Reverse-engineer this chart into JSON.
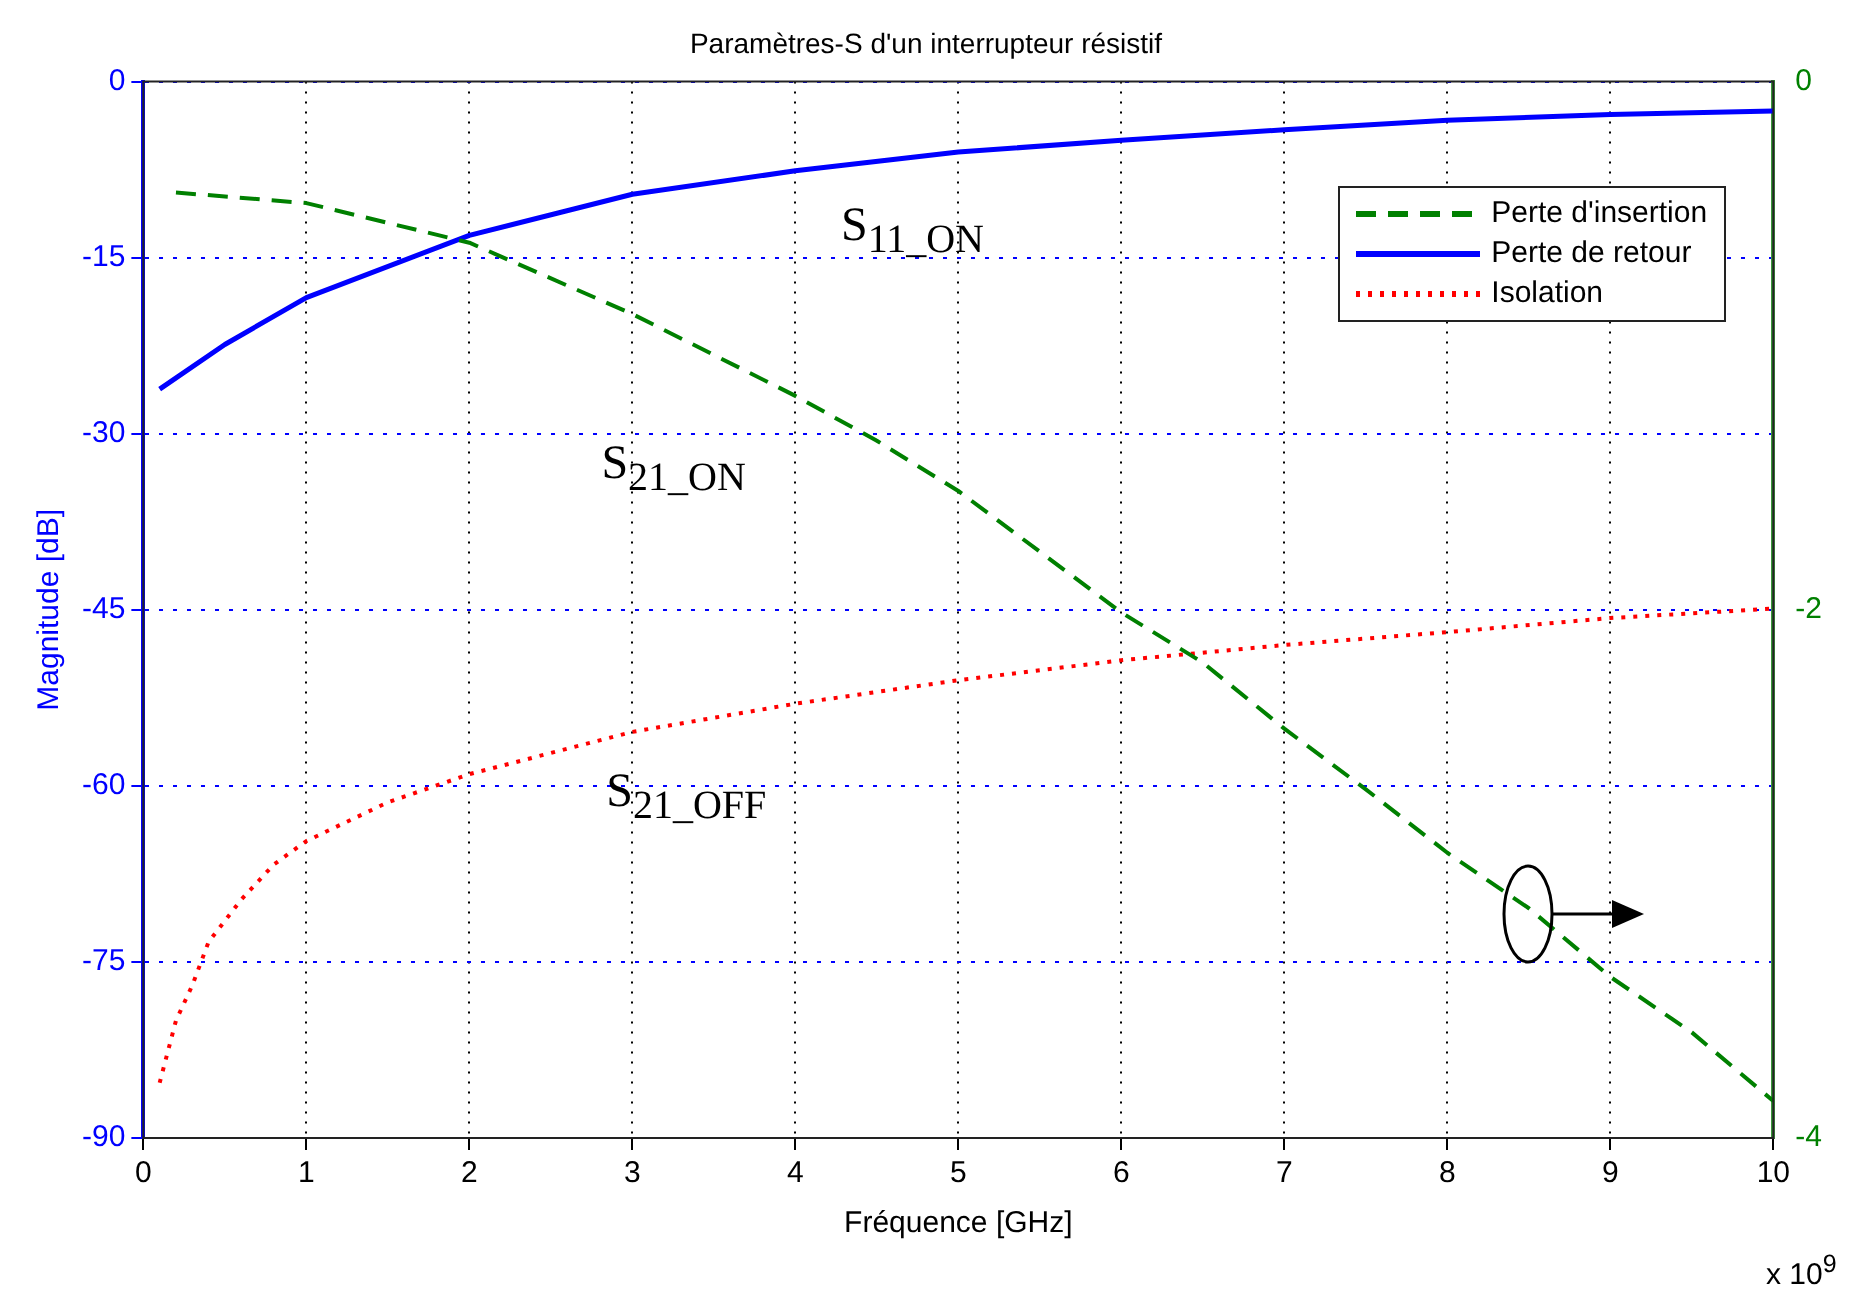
{
  "chart_data": {
    "type": "line",
    "title": "Paramètres-S d'un interrupteur résistif",
    "xlabel": "Fréquence [GHz]",
    "ylabel": "Magnitude [dB]",
    "xlim": [
      0,
      10
    ],
    "xticks": [
      0,
      1,
      2,
      3,
      4,
      5,
      6,
      7,
      8,
      9,
      10
    ],
    "ylim": [
      -90,
      0
    ],
    "yticks": [
      -90,
      -75,
      -60,
      -45,
      -30,
      -15,
      0
    ],
    "y2lim": [
      -4,
      0
    ],
    "y2ticks": [
      -4,
      -2,
      0
    ],
    "grid": true,
    "legend": "top right",
    "marker": "none",
    "series": [
      {
        "name": "Perte d'insertion",
        "color": "#008000",
        "axis": "y2",
        "line_style": "dashed",
        "x": [
          0.2,
          1,
          2,
          3,
          4,
          4.5,
          5,
          6,
          6.5,
          7,
          7.5,
          8,
          8.5,
          9,
          9.5,
          10
        ],
        "values": [
          -0.42,
          -0.46,
          -0.61,
          -0.88,
          -1.19,
          -1.36,
          -1.55,
          -2.01,
          -2.2,
          -2.45,
          -2.68,
          -2.92,
          -3.13,
          -3.39,
          -3.6,
          -3.86
        ]
      },
      {
        "name": "Perte de retour",
        "color": "#0000ff",
        "line_style": "solid",
        "x": [
          0.1,
          0.5,
          1,
          2,
          3,
          4,
          5,
          6,
          7,
          8,
          9,
          10
        ],
        "values": [
          -26.2,
          -22.4,
          -18.4,
          -13.1,
          -9.6,
          -7.6,
          -6.0,
          -5.0,
          -4.1,
          -3.3,
          -2.8,
          -2.5
        ]
      },
      {
        "name": "Isolation",
        "color": "#ff0000",
        "line_style": "dotted",
        "x": [
          0.1,
          0.2,
          0.3,
          0.4,
          0.6,
          0.8,
          1,
          1.5,
          2,
          3,
          4,
          5,
          6,
          7,
          8,
          9,
          10
        ],
        "values": [
          -85.3,
          -80,
          -77,
          -73.3,
          -69.7,
          -66.7,
          -64.7,
          -61.4,
          -59,
          -55.4,
          -53,
          -51,
          -49.3,
          -48,
          -46.9,
          -45.7,
          -44.9
        ]
      }
    ],
    "annotations": [
      "S$_{11_ON}$",
      "S$_{21_ON}$",
      "S$_{21_OFF}$",
      "x 10$^{9}$"
    ]
  }
}
